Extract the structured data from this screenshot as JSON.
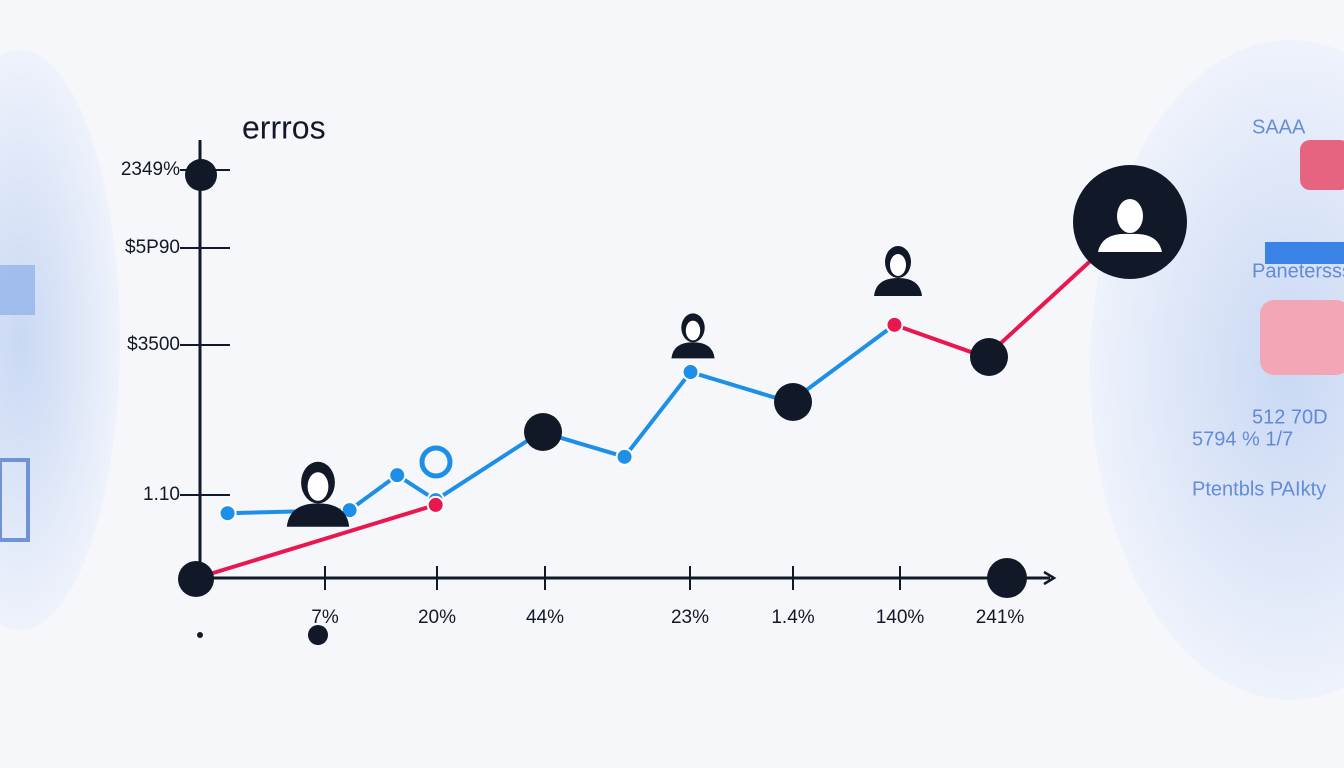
{
  "chart_data": {
    "type": "line",
    "title": "errros",
    "y_axis_labels": [
      "2349%",
      "$5P90",
      "$3500",
      "1.10"
    ],
    "x_axis_labels": [
      "7%",
      "20%",
      "44%",
      "23%",
      "1.4%",
      "140%",
      "241%"
    ],
    "xlim": [
      0,
      112
    ],
    "ylim": [
      0,
      100
    ],
    "series": [
      {
        "color": "#1e8fe6",
        "x": [
          3.3,
          17.9,
          23.6,
          28.2,
          40.8,
          50.8,
          58.7,
          70.6,
          83.1
        ],
        "values": [
          14.6,
          15.3,
          23.3,
          17.6,
          33.2,
          27.5,
          46.9,
          40.0,
          57.7
        ]
      },
      {
        "color": "#e8184f",
        "x": [
          0,
          28.2,
          null,
          83.1,
          94.0,
          111.6
        ],
        "values": [
          0,
          16.5,
          null,
          57.7,
          50.3,
          81.2
        ]
      }
    ],
    "side_panel": [
      "SAAA",
      "Panetersssy",
      "512 70D",
      "5794 % 1/7",
      "Ptentbls PAIkty"
    ]
  }
}
